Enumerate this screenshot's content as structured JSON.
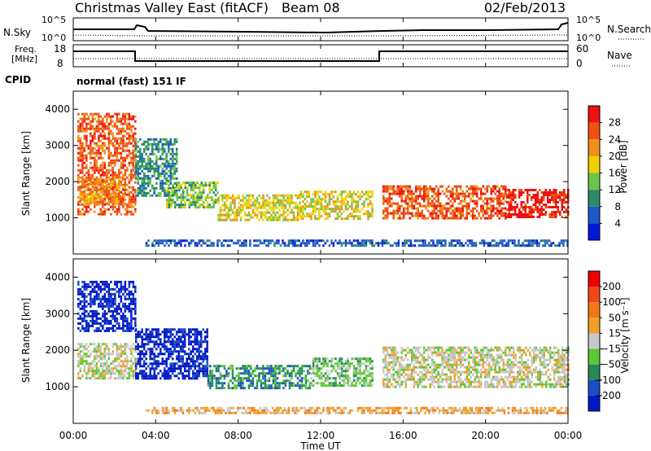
{
  "header": {
    "title": "Christmas Valley East (fitACF)",
    "beam": "Beam 08",
    "date": "02/Feb/2013"
  },
  "top_panels": {
    "nsky_label": "N.Sky",
    "nsky_ticks": [
      "10^5",
      "10^0"
    ],
    "nsearch_label": "N.Search",
    "nsearch_ticks": [
      "10^5",
      "10^0"
    ],
    "freq_label_1": "Freq.",
    "freq_label_2": "[MHz]",
    "freq_ticks": [
      "18",
      "8"
    ],
    "nave_label": "Nave",
    "nave_ticks": [
      "60",
      "0"
    ],
    "cpid_label": "CPID",
    "cpid_value": "normal (fast) 151 IF"
  },
  "colors": {
    "power": [
      "#0018dc",
      "#1e58c8",
      "#2a8a6a",
      "#6cc44a",
      "#f0d000",
      "#f09018",
      "#f05010",
      "#f01010"
    ],
    "velocity": [
      "#0018c8",
      "#1a4ec8",
      "#248a5a",
      "#5cc834",
      "#c8c8c8",
      "#f0a028",
      "#f07818",
      "#f04818",
      "#f00000"
    ]
  },
  "chart_data": [
    {
      "type": "heatmap",
      "name": "power",
      "ylabel": "Slant Range [km]",
      "ylim": [
        0,
        4500
      ],
      "y_ticks": [
        "1000",
        "2000",
        "3000",
        "4000"
      ],
      "x_ticks": [
        "00:00",
        "04:00",
        "08:00",
        "12:00",
        "16:00",
        "20:00",
        "00:00"
      ],
      "colorbar_label": "Power [dB]",
      "colorbar_ticks": [
        "4",
        "8",
        "12",
        "16",
        "20",
        "24",
        "28"
      ],
      "regions": [
        {
          "t0": 0.2,
          "t1": 3.0,
          "r0": 1100,
          "r1": 3900,
          "lvl": 6
        },
        {
          "t0": 0.3,
          "t1": 2.5,
          "r0": 1400,
          "r1": 2100,
          "lvl": 5
        },
        {
          "t0": 3.0,
          "t1": 5.0,
          "r0": 1600,
          "r1": 3200,
          "lvl": 2
        },
        {
          "t0": 4.5,
          "t1": 7.0,
          "r0": 1300,
          "r1": 2000,
          "lvl": 3
        },
        {
          "t0": 7.0,
          "t1": 11.0,
          "r0": 950,
          "r1": 1650,
          "lvl": 4
        },
        {
          "t0": 11.0,
          "t1": 14.5,
          "r0": 1000,
          "r1": 1750,
          "lvl": 4
        },
        {
          "t0": 15.0,
          "t1": 21.0,
          "r0": 1000,
          "r1": 1900,
          "lvl": 6
        },
        {
          "t0": 21.0,
          "t1": 24.0,
          "r0": 1000,
          "r1": 1800,
          "lvl": 7
        },
        {
          "t0": 3.5,
          "t1": 24.0,
          "r0": 250,
          "r1": 400,
          "lvl": 1
        }
      ]
    },
    {
      "type": "heatmap",
      "name": "velocity",
      "ylabel": "Slant Range [km]",
      "ylim": [
        0,
        4500
      ],
      "y_ticks": [
        "1000",
        "2000",
        "3000",
        "4000"
      ],
      "x_ticks": [
        "00:00",
        "04:00",
        "08:00",
        "12:00",
        "16:00",
        "20:00",
        "00:00"
      ],
      "xlabel": "Time UT",
      "colorbar_label": "Velocity [m s⁻¹]",
      "colorbar_ticks": [
        "200",
        "100",
        "50",
        "15",
        "−15",
        "−50",
        "−100",
        "−200"
      ],
      "regions": [
        {
          "t0": 0.2,
          "t1": 3.0,
          "r0": 2500,
          "r1": 3900,
          "lvl": 0
        },
        {
          "t0": 0.2,
          "t1": 3.0,
          "r0": 1200,
          "r1": 2200,
          "lvl": 4
        },
        {
          "t0": 3.0,
          "t1": 6.5,
          "r0": 1200,
          "r1": 2600,
          "lvl": 0
        },
        {
          "t0": 6.5,
          "t1": 11.5,
          "r0": 950,
          "r1": 1600,
          "lvl": 2
        },
        {
          "t0": 11.5,
          "t1": 14.5,
          "r0": 1000,
          "r1": 1800,
          "lvl": 3
        },
        {
          "t0": 15.0,
          "t1": 24.0,
          "r0": 1000,
          "r1": 2100,
          "lvl": 4
        },
        {
          "t0": 3.5,
          "t1": 24.0,
          "r0": 250,
          "r1": 450,
          "lvl": 5
        }
      ]
    }
  ]
}
